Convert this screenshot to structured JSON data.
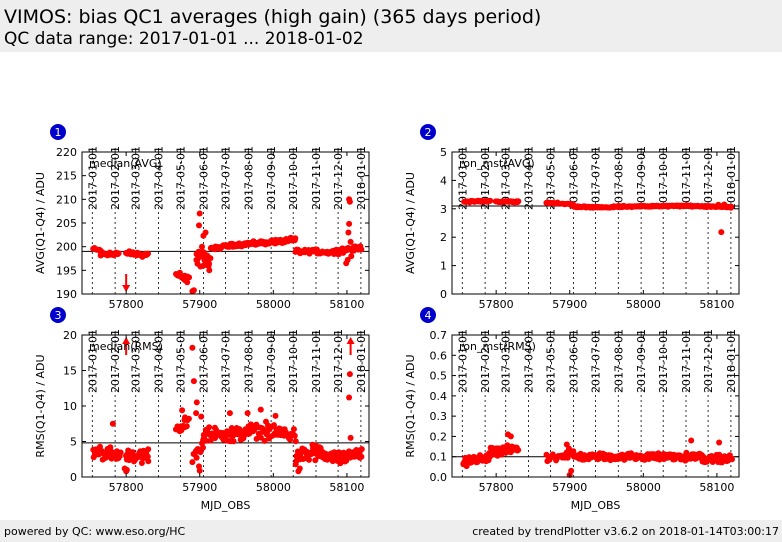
{
  "page": {
    "title": "VIMOS: bias QC1 averages (high gain) (365 days period)",
    "subtitle": "QC data range: 2017-01-01 ... 2018-01-02",
    "footer_left": "powered by QC: www.eso.org/HC",
    "footer_right": "created by trendPlotter v3.6.2 on 2018-01-14T03:00:17"
  },
  "colors": {
    "points": "#ff0000",
    "reference_line": "#000000",
    "panel_badge": "#0000cc",
    "header_bg": "#eeeeee"
  },
  "chart_data": [
    {
      "type": "scatter",
      "panel_number": "1",
      "legend": "median(AVG)",
      "ylabel": "AVG(Q1-Q4) / ADU",
      "xlabel": "",
      "xlim": [
        57740,
        58130
      ],
      "ylim": [
        190,
        220
      ],
      "xticks": [
        57800,
        57900,
        58000,
        58100
      ],
      "yticks": [
        190,
        195,
        200,
        205,
        210,
        215,
        220
      ],
      "date_ticks": [
        {
          "mjd": 57754,
          "label": "2017-01-01"
        },
        {
          "mjd": 57785,
          "label": "2017-02-01"
        },
        {
          "mjd": 57813,
          "label": "2017-03-01"
        },
        {
          "mjd": 57844,
          "label": "2017-04-01"
        },
        {
          "mjd": 57874,
          "label": "2017-05-01"
        },
        {
          "mjd": 57905,
          "label": "2017-06-01"
        },
        {
          "mjd": 57935,
          "label": "2017-07-01"
        },
        {
          "mjd": 57966,
          "label": "2017-08-01"
        },
        {
          "mjd": 57997,
          "label": "2017-09-01"
        },
        {
          "mjd": 58027,
          "label": "2017-10-01"
        },
        {
          "mjd": 58058,
          "label": "2017-11-01"
        },
        {
          "mjd": 58088,
          "label": "2017-12-01"
        },
        {
          "mjd": 58119,
          "label": "2018-01-01"
        }
      ],
      "reference_line": 199.0,
      "outlier_arrows": [
        {
          "x": 57800,
          "direction": "down"
        }
      ],
      "segments": [
        {
          "x_start": 57755,
          "x_end": 57765,
          "y_start": 199.6,
          "y_end": 199.2,
          "n": 10,
          "jitter": 0.35
        },
        {
          "x_start": 57765,
          "x_end": 57790,
          "y_start": 198.6,
          "y_end": 198.4,
          "n": 26,
          "jitter": 0.7
        },
        {
          "x_start": 57800,
          "x_end": 57830,
          "y_start": 198.6,
          "y_end": 198.2,
          "n": 24,
          "jitter": 0.6
        },
        {
          "x_start": 57868,
          "x_end": 57885,
          "y_start": 194.2,
          "y_end": 193.5,
          "n": 10,
          "jitter": 0.5
        },
        {
          "x_start": 57895,
          "x_end": 57905,
          "y_start": 198.0,
          "y_end": 198.3,
          "n": 12,
          "jitter": 1.2
        },
        {
          "x_start": 57905,
          "x_end": 57915,
          "y_start": 197.0,
          "y_end": 197.5,
          "n": 10,
          "jitter": 1.6
        },
        {
          "x_start": 57915,
          "x_end": 57940,
          "y_start": 199.6,
          "y_end": 200.2,
          "n": 22,
          "jitter": 0.5
        },
        {
          "x_start": 57940,
          "x_end": 58000,
          "y_start": 200.3,
          "y_end": 201.0,
          "n": 60,
          "jitter": 0.5
        },
        {
          "x_start": 58000,
          "x_end": 58030,
          "y_start": 201.0,
          "y_end": 201.4,
          "n": 30,
          "jitter": 0.6
        },
        {
          "x_start": 58030,
          "x_end": 58060,
          "y_start": 199.0,
          "y_end": 199.0,
          "n": 30,
          "jitter": 0.6
        },
        {
          "x_start": 58060,
          "x_end": 58090,
          "y_start": 198.8,
          "y_end": 199.0,
          "n": 28,
          "jitter": 0.6
        },
        {
          "x_start": 58090,
          "x_end": 58120,
          "y_start": 199.1,
          "y_end": 199.8,
          "n": 30,
          "jitter": 0.6
        }
      ],
      "extra_points": [
        [
          57870,
          193.9
        ],
        [
          57873,
          194.5
        ],
        [
          57878,
          193.2
        ],
        [
          57880,
          192.9
        ],
        [
          57883,
          192.5
        ],
        [
          57890,
          190.6
        ],
        [
          57892,
          190.8
        ],
        [
          57900,
          207.0
        ],
        [
          57899,
          204.5
        ],
        [
          57905,
          202.3
        ],
        [
          57908,
          203.0
        ],
        [
          57903,
          200.0
        ],
        [
          57912,
          196.0
        ],
        [
          57913,
          195.0
        ],
        [
          57897,
          196.4
        ],
        [
          57901,
          195.8
        ],
        [
          58103,
          210.0
        ],
        [
          58104,
          209.5
        ],
        [
          58103,
          204.8
        ],
        [
          58102,
          203.0
        ],
        [
          58101,
          197.2
        ],
        [
          58099,
          196.5
        ],
        [
          58105,
          201.0
        ],
        [
          58106,
          198.0
        ]
      ]
    },
    {
      "type": "scatter",
      "panel_number": "2",
      "legend": "ron_mst(AVG)",
      "ylabel": "AVG(Q1-Q4) / ADU",
      "xlabel": "",
      "xlim": [
        57740,
        58130
      ],
      "ylim": [
        0,
        5
      ],
      "xticks": [
        57800,
        57900,
        58000,
        58100
      ],
      "yticks": [
        0,
        1,
        2,
        3,
        4,
        5
      ],
      "date_ticks": [
        {
          "mjd": 57754,
          "label": "2017-01-01"
        },
        {
          "mjd": 57785,
          "label": "2017-02-01"
        },
        {
          "mjd": 57813,
          "label": "2017-03-01"
        },
        {
          "mjd": 57844,
          "label": "2017-04-01"
        },
        {
          "mjd": 57874,
          "label": "2017-05-01"
        },
        {
          "mjd": 57905,
          "label": "2017-06-01"
        },
        {
          "mjd": 57935,
          "label": "2017-07-01"
        },
        {
          "mjd": 57966,
          "label": "2017-08-01"
        },
        {
          "mjd": 57997,
          "label": "2017-09-01"
        },
        {
          "mjd": 58027,
          "label": "2017-10-01"
        },
        {
          "mjd": 58058,
          "label": "2017-11-01"
        },
        {
          "mjd": 58088,
          "label": "2017-12-01"
        },
        {
          "mjd": 58119,
          "label": "2018-01-01"
        }
      ],
      "reference_line": 3.1,
      "outlier_arrows": [],
      "segments": [
        {
          "x_start": 57757,
          "x_end": 57792,
          "y_start": 3.25,
          "y_end": 3.27,
          "n": 28,
          "jitter": 0.03
        },
        {
          "x_start": 57800,
          "x_end": 57830,
          "y_start": 3.25,
          "y_end": 3.25,
          "n": 24,
          "jitter": 0.03
        },
        {
          "x_start": 57868,
          "x_end": 57885,
          "y_start": 3.22,
          "y_end": 3.2,
          "n": 10,
          "jitter": 0.03
        },
        {
          "x_start": 57890,
          "x_end": 57905,
          "y_start": 3.18,
          "y_end": 3.15,
          "n": 10,
          "jitter": 0.03
        },
        {
          "x_start": 57905,
          "x_end": 57960,
          "y_start": 3.07,
          "y_end": 3.05,
          "n": 40,
          "jitter": 0.03
        },
        {
          "x_start": 57960,
          "x_end": 58060,
          "y_start": 3.08,
          "y_end": 3.1,
          "n": 80,
          "jitter": 0.03
        },
        {
          "x_start": 58060,
          "x_end": 58100,
          "y_start": 3.1,
          "y_end": 3.08,
          "n": 36,
          "jitter": 0.03
        },
        {
          "x_start": 58100,
          "x_end": 58120,
          "y_start": 3.1,
          "y_end": 3.05,
          "n": 18,
          "jitter": 0.03
        }
      ],
      "extra_points": [
        [
          58106,
          2.18
        ],
        [
          58110,
          3.15
        ],
        [
          58102,
          3.14
        ]
      ]
    },
    {
      "type": "scatter",
      "panel_number": "3",
      "legend": "median(RMS)",
      "ylabel": "RMS(Q1-Q4) / ADU",
      "xlabel": "MJD_OBS",
      "xlim": [
        57740,
        58130
      ],
      "ylim": [
        0,
        20
      ],
      "xticks": [
        57800,
        57900,
        58000,
        58100
      ],
      "yticks": [
        0,
        5,
        10,
        15,
        20
      ],
      "date_ticks": [
        {
          "mjd": 57754,
          "label": "2017-01-01"
        },
        {
          "mjd": 57785,
          "label": "2017-02-01"
        },
        {
          "mjd": 57813,
          "label": "2017-03-01"
        },
        {
          "mjd": 57844,
          "label": "2017-04-01"
        },
        {
          "mjd": 57874,
          "label": "2017-05-01"
        },
        {
          "mjd": 57905,
          "label": "2017-06-01"
        },
        {
          "mjd": 57935,
          "label": "2017-07-01"
        },
        {
          "mjd": 57966,
          "label": "2017-08-01"
        },
        {
          "mjd": 57997,
          "label": "2017-09-01"
        },
        {
          "mjd": 58027,
          "label": "2017-10-01"
        },
        {
          "mjd": 58058,
          "label": "2017-11-01"
        },
        {
          "mjd": 58088,
          "label": "2017-12-01"
        },
        {
          "mjd": 58119,
          "label": "2018-01-01"
        }
      ],
      "reference_line": 4.8,
      "outlier_arrows": [
        {
          "x": 57800,
          "direction": "up"
        },
        {
          "x": 58105,
          "direction": "up"
        }
      ],
      "segments": [
        {
          "x_start": 57755,
          "x_end": 57792,
          "y_start": 3.5,
          "y_end": 3.2,
          "n": 40,
          "jitter": 1.1
        },
        {
          "x_start": 57800,
          "x_end": 57830,
          "y_start": 3.0,
          "y_end": 2.8,
          "n": 34,
          "jitter": 1.0
        },
        {
          "x_start": 57868,
          "x_end": 57885,
          "y_start": 6.5,
          "y_end": 7.5,
          "n": 12,
          "jitter": 1.2
        },
        {
          "x_start": 57890,
          "x_end": 57905,
          "y_start": 3.5,
          "y_end": 4.5,
          "n": 14,
          "jitter": 1.5
        },
        {
          "x_start": 57905,
          "x_end": 57960,
          "y_start": 6.0,
          "y_end": 6.0,
          "n": 55,
          "jitter": 1.2
        },
        {
          "x_start": 57960,
          "x_end": 58030,
          "y_start": 6.5,
          "y_end": 6.0,
          "n": 60,
          "jitter": 1.3
        },
        {
          "x_start": 58030,
          "x_end": 58070,
          "y_start": 3.0,
          "y_end": 3.5,
          "n": 45,
          "jitter": 1.3
        },
        {
          "x_start": 58070,
          "x_end": 58100,
          "y_start": 2.8,
          "y_end": 2.8,
          "n": 36,
          "jitter": 1.1
        },
        {
          "x_start": 58100,
          "x_end": 58120,
          "y_start": 3.0,
          "y_end": 3.2,
          "n": 26,
          "jitter": 0.8
        }
      ],
      "extra_points": [
        [
          57890,
          18.2
        ],
        [
          57892,
          13.5
        ],
        [
          57896,
          10.5
        ],
        [
          57895,
          9.0
        ],
        [
          57902,
          8.5
        ],
        [
          57876,
          9.4
        ],
        [
          57880,
          8.4
        ],
        [
          57782,
          7.5
        ],
        [
          57798,
          1.2
        ],
        [
          57800,
          0.8
        ],
        [
          57801,
          1.0
        ],
        [
          57830,
          3.9
        ],
        [
          57899,
          1.5
        ],
        [
          57900,
          0.9
        ],
        [
          57941,
          9.0
        ],
        [
          57965,
          9.0
        ],
        [
          57983,
          9.5
        ],
        [
          57990,
          7.8
        ],
        [
          58003,
          8.6
        ],
        [
          58104,
          14.5
        ],
        [
          58103,
          11.2
        ],
        [
          58105,
          5.5
        ],
        [
          58034,
          0.8
        ],
        [
          58036,
          1.2
        ]
      ]
    },
    {
      "type": "scatter",
      "panel_number": "4",
      "legend": "ron_mst(RMS)",
      "ylabel": "RMS(Q1-Q4) / ADU",
      "xlabel": "MJD_OBS",
      "xlim": [
        57740,
        58130
      ],
      "ylim": [
        0,
        0.7
      ],
      "xticks": [
        57800,
        57900,
        58000,
        58100
      ],
      "yticks": [
        0.0,
        0.1,
        0.2,
        0.3,
        0.4,
        0.5,
        0.6,
        0.7
      ],
      "date_ticks": [
        {
          "mjd": 57754,
          "label": "2017-01-01"
        },
        {
          "mjd": 57785,
          "label": "2017-02-01"
        },
        {
          "mjd": 57813,
          "label": "2017-03-01"
        },
        {
          "mjd": 57844,
          "label": "2017-04-01"
        },
        {
          "mjd": 57874,
          "label": "2017-05-01"
        },
        {
          "mjd": 57905,
          "label": "2017-06-01"
        },
        {
          "mjd": 57935,
          "label": "2017-07-01"
        },
        {
          "mjd": 57966,
          "label": "2017-08-01"
        },
        {
          "mjd": 57997,
          "label": "2017-09-01"
        },
        {
          "mjd": 58027,
          "label": "2017-10-01"
        },
        {
          "mjd": 58058,
          "label": "2017-11-01"
        },
        {
          "mjd": 58088,
          "label": "2017-12-01"
        },
        {
          "mjd": 58119,
          "label": "2018-01-01"
        }
      ],
      "reference_line": 0.1,
      "outlier_arrows": [],
      "segments": [
        {
          "x_start": 57755,
          "x_end": 57792,
          "y_start": 0.07,
          "y_end": 0.1,
          "n": 40,
          "jitter": 0.025
        },
        {
          "x_start": 57792,
          "x_end": 57830,
          "y_start": 0.12,
          "y_end": 0.14,
          "n": 40,
          "jitter": 0.028
        },
        {
          "x_start": 57868,
          "x_end": 57905,
          "y_start": 0.1,
          "y_end": 0.11,
          "n": 26,
          "jitter": 0.025
        },
        {
          "x_start": 57905,
          "x_end": 57960,
          "y_start": 0.1,
          "y_end": 0.1,
          "n": 55,
          "jitter": 0.02
        },
        {
          "x_start": 57960,
          "x_end": 58030,
          "y_start": 0.1,
          "y_end": 0.1,
          "n": 70,
          "jitter": 0.02
        },
        {
          "x_start": 58030,
          "x_end": 58080,
          "y_start": 0.1,
          "y_end": 0.1,
          "n": 50,
          "jitter": 0.022
        },
        {
          "x_start": 58080,
          "x_end": 58120,
          "y_start": 0.09,
          "y_end": 0.09,
          "n": 40,
          "jitter": 0.022
        }
      ],
      "extra_points": [
        [
          57816,
          0.21
        ],
        [
          57820,
          0.2
        ],
        [
          57896,
          0.16
        ],
        [
          57899,
          0.14
        ],
        [
          58065,
          0.18
        ],
        [
          58103,
          0.17
        ],
        [
          57900,
          0.01
        ],
        [
          57902,
          0.03
        ]
      ]
    }
  ]
}
